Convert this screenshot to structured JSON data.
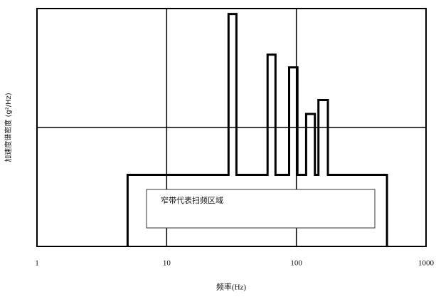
{
  "chart_data": {
    "type": "line",
    "x_label": "频率(Hz)",
    "y_label": "加速度谱密度 (g²/Hz)",
    "annotation": "窄带代表扫频区域",
    "x": [
      5,
      5,
      30,
      30,
      34.5,
      34.5,
      60,
      60,
      69,
      69,
      88,
      88,
      102,
      102,
      119,
      119,
      139,
      139,
      148,
      148,
      175,
      175,
      500,
      500
    ],
    "values": [
      1,
      4,
      4,
      90,
      90,
      4,
      4,
      41,
      41,
      4,
      4,
      32,
      32,
      4,
      4,
      13,
      13,
      4,
      4,
      17,
      17,
      4,
      4,
      1
    ],
    "color": "#000000",
    "xlim": [
      1,
      1000
    ],
    "xticks": [
      1,
      10,
      100,
      1000
    ],
    "xlog": true,
    "ylim": [
      1,
      100
    ],
    "yticks": [
      1,
      10,
      100
    ],
    "ylog": true,
    "ytick_labels_shown": false,
    "grid": true
  }
}
